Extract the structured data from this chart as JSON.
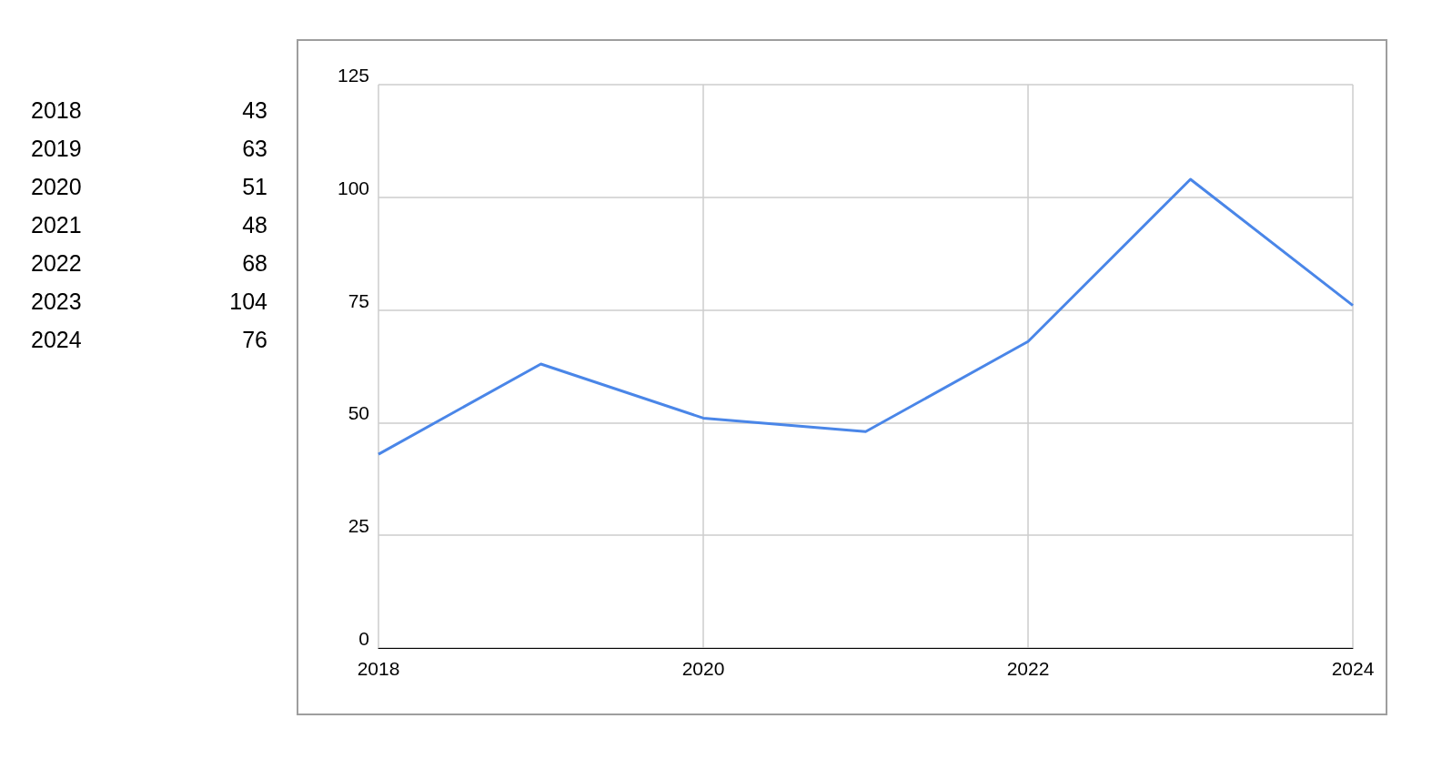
{
  "chart_data": {
    "type": "line",
    "x": [
      2018,
      2019,
      2020,
      2021,
      2022,
      2023,
      2024
    ],
    "values": [
      43,
      63,
      51,
      48,
      68,
      104,
      76
    ],
    "color": "#4a86e8",
    "marker": "none",
    "line_style": "solid",
    "xlim": [
      2018,
      2024
    ],
    "xticks": [
      2018,
      2020,
      2022,
      2024
    ],
    "ylim": [
      0,
      125
    ],
    "yticks": [
      0,
      25,
      50,
      75,
      100,
      125
    ],
    "grid": true,
    "annotations": [
      "2018",
      "43",
      "2019",
      "63",
      "2020",
      "51",
      "2021",
      "48",
      "2022",
      "68",
      "2023",
      "104",
      "2024",
      "76"
    ]
  }
}
